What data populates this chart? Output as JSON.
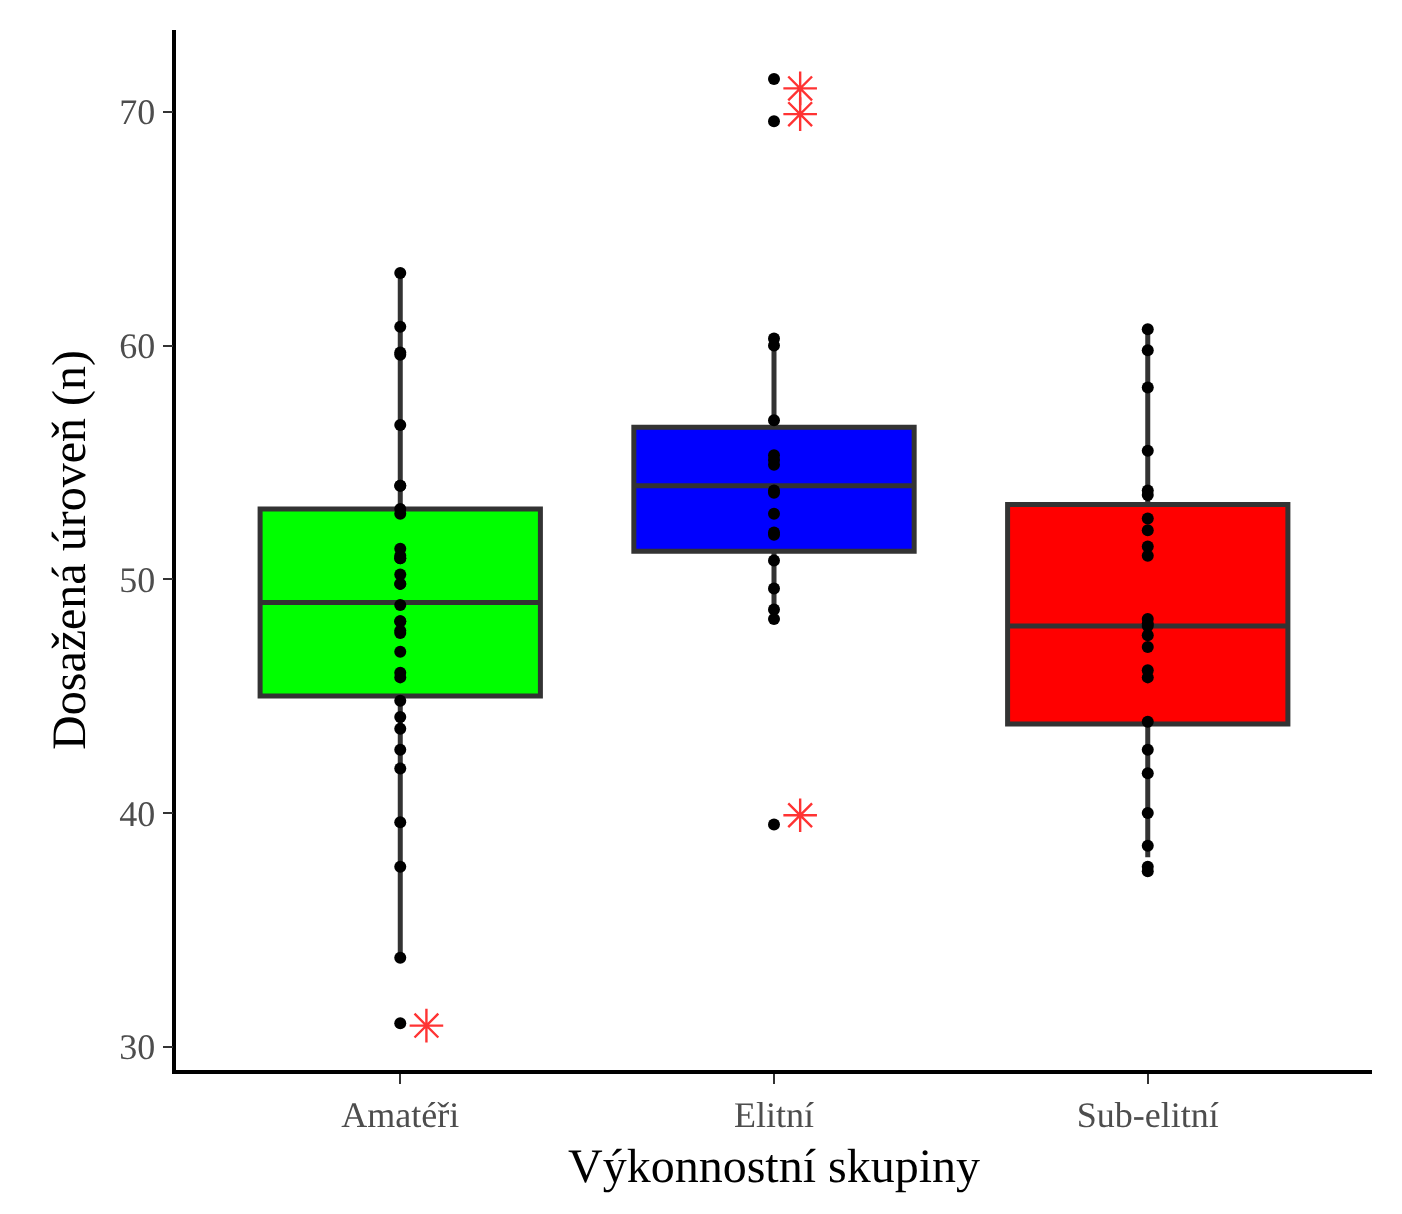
{
  "chart_data": {
    "type": "box",
    "xlabel": "Výkonnostní skupiny",
    "ylabel": "Dosažená úroveň (n)",
    "categories": [
      "Amatéři",
      "Elitní",
      "Sub-elitní"
    ],
    "colors": [
      "#00ff00",
      "#0000ff",
      "#ff0000"
    ],
    "boxes": [
      {
        "low": 34,
        "q1": 45,
        "median": 49,
        "q3": 53,
        "high": 63,
        "outliers": [
          30.9
        ]
      },
      {
        "low": 48.1,
        "q1": 51.2,
        "median": 54,
        "q3": 56.5,
        "high": 60,
        "outliers": [
          71,
          69.9,
          39.9
        ]
      },
      {
        "low": 38.1,
        "q1": 43.8,
        "median": 48,
        "q3": 53.2,
        "high": 60.7
      }
    ],
    "series": [
      {
        "type": "scatter",
        "color": "#000000",
        "marker": "circle",
        "x": [
          "Amatéři",
          "Amatéři",
          "Amatéři",
          "Amatéři",
          "Amatéři",
          "Amatéři",
          "Amatéři",
          "Amatéři",
          "Amatéři",
          "Amatéři",
          "Amatéři",
          "Amatéři",
          "Amatéři",
          "Amatéři",
          "Amatéři",
          "Amatéři",
          "Amatéři",
          "Amatéři",
          "Amatéři",
          "Amatéři",
          "Amatéři",
          "Amatéři",
          "Amatéři",
          "Amatéři",
          "Amatéři",
          "Amatéři",
          "Amatéři",
          "Amatéři",
          "Amatéři",
          "Amatéři",
          "Amatéři",
          "Amatéři",
          "Amatéři",
          "Elitní",
          "Elitní",
          "Elitní",
          "Elitní",
          "Elitní",
          "Elitní",
          "Elitní",
          "Elitní",
          "Elitní",
          "Elitní",
          "Elitní",
          "Elitní",
          "Elitní",
          "Elitní",
          "Elitní",
          "Elitní",
          "Elitní",
          "Elitní",
          "Sub-elitní",
          "Sub-elitní",
          "Sub-elitní",
          "Sub-elitní",
          "Sub-elitní",
          "Sub-elitní",
          "Sub-elitní",
          "Sub-elitní",
          "Sub-elitní",
          "Sub-elitní",
          "Sub-elitní",
          "Sub-elitní",
          "Sub-elitní",
          "Sub-elitní",
          "Sub-elitní",
          "Sub-elitní",
          "Sub-elitní",
          "Sub-elitní",
          "Sub-elitní",
          "Sub-elitní",
          "Sub-elitní",
          "Sub-elitní",
          "Sub-elitní",
          "Sub-elitní"
        ],
        "values": [
          63.1,
          60.8,
          59.6,
          59.7,
          56.6,
          54,
          54,
          53,
          52.8,
          51.3,
          51,
          50.9,
          50.9,
          50.2,
          49.8,
          49.8,
          48.9,
          48.2,
          48.2,
          47.8,
          47.7,
          46.9,
          46,
          45.8,
          44.8,
          44.1,
          43.6,
          42.7,
          41.9,
          39.6,
          37.7,
          33.8,
          31,
          71.4,
          69.6,
          60.3,
          60,
          56.8,
          55.3,
          54.9,
          55.1,
          53.8,
          53.7,
          52.8,
          52,
          51.9,
          50.8,
          49.6,
          48.7,
          48.3,
          39.5,
          60.7,
          59.8,
          58.2,
          55.5,
          53.8,
          53.6,
          52.6,
          52.1,
          51.4,
          51,
          48.3,
          48.1,
          48,
          47.6,
          47.1,
          46.1,
          45.8,
          43.9,
          42.7,
          41.7,
          40,
          38.6,
          37.7,
          37.5
        ]
      }
    ],
    "ylim": [
      29,
      73.5
    ],
    "yticks": [
      30,
      40,
      50,
      60,
      70
    ]
  }
}
